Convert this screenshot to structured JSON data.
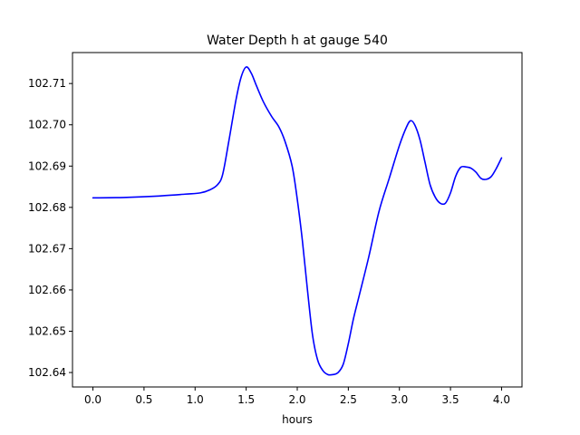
{
  "chart_data": {
    "type": "line",
    "title": "Water Depth h at gauge 540",
    "xlabel": "hours",
    "ylabel": "",
    "xlim": [
      -0.2,
      4.2
    ],
    "ylim": [
      102.6365,
      102.7175
    ],
    "grid": false,
    "xticks": [
      0.0,
      0.5,
      1.0,
      1.5,
      2.0,
      2.5,
      3.0,
      3.5,
      4.0
    ],
    "xtick_labels": [
      "0.0",
      "0.5",
      "1.0",
      "1.5",
      "2.0",
      "2.5",
      "3.0",
      "3.5",
      "4.0"
    ],
    "yticks": [
      102.64,
      102.65,
      102.66,
      102.67,
      102.68,
      102.69,
      102.7,
      102.71
    ],
    "ytick_labels": [
      "102.64",
      "102.65",
      "102.66",
      "102.67",
      "102.68",
      "102.69",
      "102.70",
      "102.71"
    ],
    "series": [
      {
        "color": "#0000ff",
        "x": [
          0.0,
          0.3,
          0.6,
          0.9,
          1.05,
          1.15,
          1.22,
          1.27,
          1.33,
          1.4,
          1.45,
          1.5,
          1.55,
          1.6,
          1.67,
          1.75,
          1.82,
          1.88,
          1.95,
          2.0,
          2.05,
          2.1,
          2.15,
          2.2,
          2.25,
          2.3,
          2.35,
          2.4,
          2.45,
          2.5,
          2.55,
          2.6,
          2.7,
          2.8,
          2.9,
          3.0,
          3.07,
          3.11,
          3.15,
          3.2,
          3.25,
          3.3,
          3.35,
          3.4,
          3.45,
          3.5,
          3.55,
          3.6,
          3.65,
          3.7,
          3.75,
          3.8,
          3.85,
          3.9,
          3.95,
          4.0
        ],
        "y": [
          102.6823,
          102.6824,
          102.6827,
          102.6832,
          102.6835,
          102.6843,
          102.6855,
          102.688,
          102.696,
          102.706,
          102.7115,
          102.714,
          102.7125,
          102.7095,
          102.7055,
          102.702,
          102.6995,
          102.696,
          102.69,
          102.682,
          102.672,
          102.66,
          102.649,
          102.643,
          102.6405,
          102.6395,
          102.6395,
          102.64,
          102.642,
          102.647,
          102.653,
          102.658,
          102.668,
          102.679,
          102.687,
          102.695,
          102.6995,
          102.701,
          102.7,
          102.6965,
          102.691,
          102.6855,
          102.6825,
          102.681,
          102.681,
          102.6835,
          102.6875,
          102.6897,
          102.6898,
          102.6895,
          102.6885,
          102.687,
          102.6868,
          102.6875,
          102.6895,
          102.692
        ]
      }
    ]
  }
}
